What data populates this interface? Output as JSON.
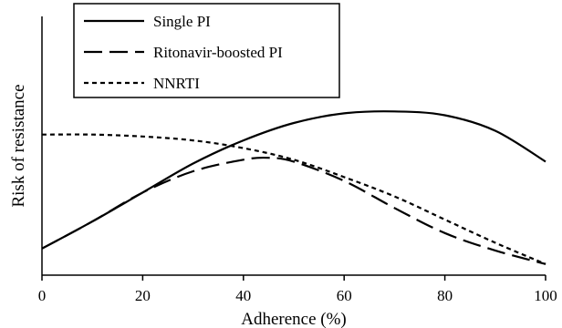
{
  "chart_data": {
    "type": "line",
    "title": "",
    "xlabel": "Adherence (%)",
    "ylabel": "Risk of resistance",
    "xlim": [
      0,
      100
    ],
    "ylim": [
      0,
      1
    ],
    "x_ticks": [
      "0",
      "20",
      "40",
      "60",
      "80",
      "100"
    ],
    "y_ticks_shown": false,
    "grid": false,
    "legend_position": "top-left",
    "series": [
      {
        "name": "Single PI",
        "style": "solid",
        "x": [
          0,
          10,
          20,
          30,
          40,
          50,
          60,
          70,
          80,
          90,
          100
        ],
        "y": [
          0.1,
          0.24,
          0.39,
          0.54,
          0.66,
          0.75,
          0.8,
          0.81,
          0.79,
          0.71,
          0.55
        ]
      },
      {
        "name": "Ritonavir-boosted PI",
        "style": "dashed",
        "x": [
          0,
          10,
          20,
          30,
          40,
          45,
          50,
          60,
          70,
          80,
          90,
          100
        ],
        "y": [
          0.1,
          0.24,
          0.39,
          0.5,
          0.56,
          0.57,
          0.55,
          0.45,
          0.31,
          0.18,
          0.09,
          0.02
        ]
      },
      {
        "name": "NNRTI",
        "style": "dotted",
        "x": [
          0,
          10,
          20,
          30,
          40,
          50,
          60,
          70,
          80,
          90,
          100
        ],
        "y": [
          0.69,
          0.69,
          0.68,
          0.66,
          0.62,
          0.56,
          0.47,
          0.37,
          0.25,
          0.13,
          0.02
        ]
      }
    ]
  }
}
